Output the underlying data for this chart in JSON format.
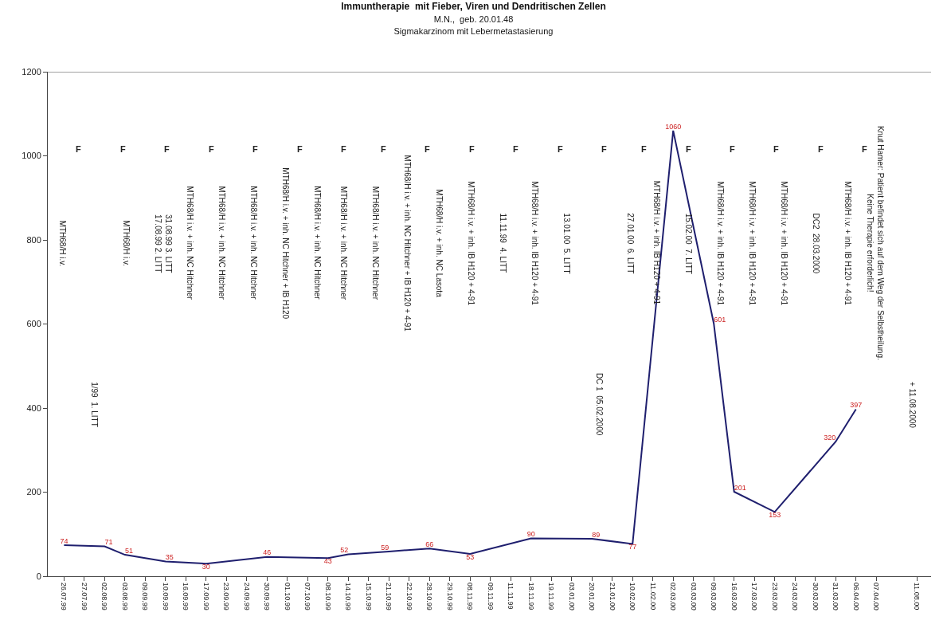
{
  "chart_data": {
    "type": "line",
    "title": "Immuntherapie  mit Fieber, Viren und Dendritischen Zellen",
    "subtitle": "M.N.,  geb. 20.01.48\nSigmakarzinom mit Lebermetastasierung",
    "categories": [
      "26.07.99",
      "27.07.99",
      "02.08.99",
      "03.08.99",
      "09.09.99",
      "10.09.99",
      "16.09.99",
      "17.09.99",
      "23.09.99",
      "24.09.99",
      "30.09.99",
      "01.10.99",
      "07.10.99",
      "08.10.99",
      "14.10.99",
      "15.10.99",
      "21.10.99",
      "22.10.99",
      "28.10.99",
      "29.10.99",
      "08.11.99",
      "09.11.99",
      "11.11.99",
      "18.11.99",
      "19.11.99",
      "03.01.00",
      "20.01.00",
      "21.01.00",
      "10.02.00",
      "11.02.00",
      "02.03.00",
      "03.03.00",
      "09.03.00",
      "16.03.00",
      "17.03.00",
      "23.03.00",
      "24.03.00",
      "30.03.00",
      "31.03.00",
      "06.04.00",
      "07.04.00",
      null,
      "11.08.00"
    ],
    "series": [
      {
        "color": "#1f1f6e",
        "values": [
          74,
          null,
          71,
          51,
          null,
          35,
          null,
          30,
          null,
          null,
          46,
          null,
          null,
          43,
          52,
          null,
          59,
          null,
          66,
          null,
          53,
          null,
          null,
          90,
          null,
          null,
          89,
          null,
          77,
          null,
          1060,
          null,
          601,
          201,
          null,
          153,
          null,
          null,
          320,
          397,
          null,
          null,
          null
        ]
      }
    ],
    "data_labels": true,
    "ylim": [
      0,
      1200
    ],
    "yticks": [
      0,
      200,
      400,
      600,
      800,
      1000,
      1200
    ],
    "marker": "none",
    "line_style": "solid",
    "annotations": [
      "F",
      "F",
      "F",
      "F",
      "F",
      "F",
      "F",
      "F",
      "F",
      "F",
      "F",
      "F",
      "F",
      "F",
      "F",
      "F",
      "F",
      "F",
      "F",
      "MTH68/H i.v.",
      "1/99  1. LITT",
      "MTH68/H i.v.",
      "31.08.99 3. LITT\n17.08.99 2. LITT",
      "MTH68/H i.v. + inh. NC Hitchner",
      "MTH68/H i.v. + inh. NC Hitchner",
      "MTH68/H i.v. + inh. NC Hitchner",
      "MTH68/H i.v. + inh. NC Hitchner + IB H120",
      "MTH68/H i.v. + inh. NC Hitchner",
      "MTH68/H i.v. + inh. NC Hitchner",
      "MTH68/H i.v. + inh. NC Hitchner",
      "MTH68/H i.v. + inh. NC Hitchner + IB H120 + 4-91",
      "MTH68/H i.v. + inh. NC Lasota",
      "MTH68/H i.v. + inh. IB H120 + 4-91",
      "11.11.99  4. LITT",
      "MTH68/H i.v. + inh. IB H120 + 4-91",
      "13.01.00  5. LITT",
      "DC 1  05.02.2000",
      "27.01.00  6. LITT",
      "MTH68/H i.v. + inh. IB H120 + 4-91",
      "15.02.00  7. LITT",
      "MTH68/H i.v. + inh. IB H120 + 4-91",
      "MTH68/H i.v. + inh. IB H120 + 4-91",
      "MTH68/H i.v. + inh. IB H120 + 4-91",
      "DC2  28.03.2000",
      "MTH68/H i.v. + inh. IB H120 + 4-91",
      "Knut Hamer: Patient befindet sich auf dem Weg der Selbstheilung.\nKeine Therapie erforderlich!",
      "+ 11.08.2000"
    ]
  }
}
